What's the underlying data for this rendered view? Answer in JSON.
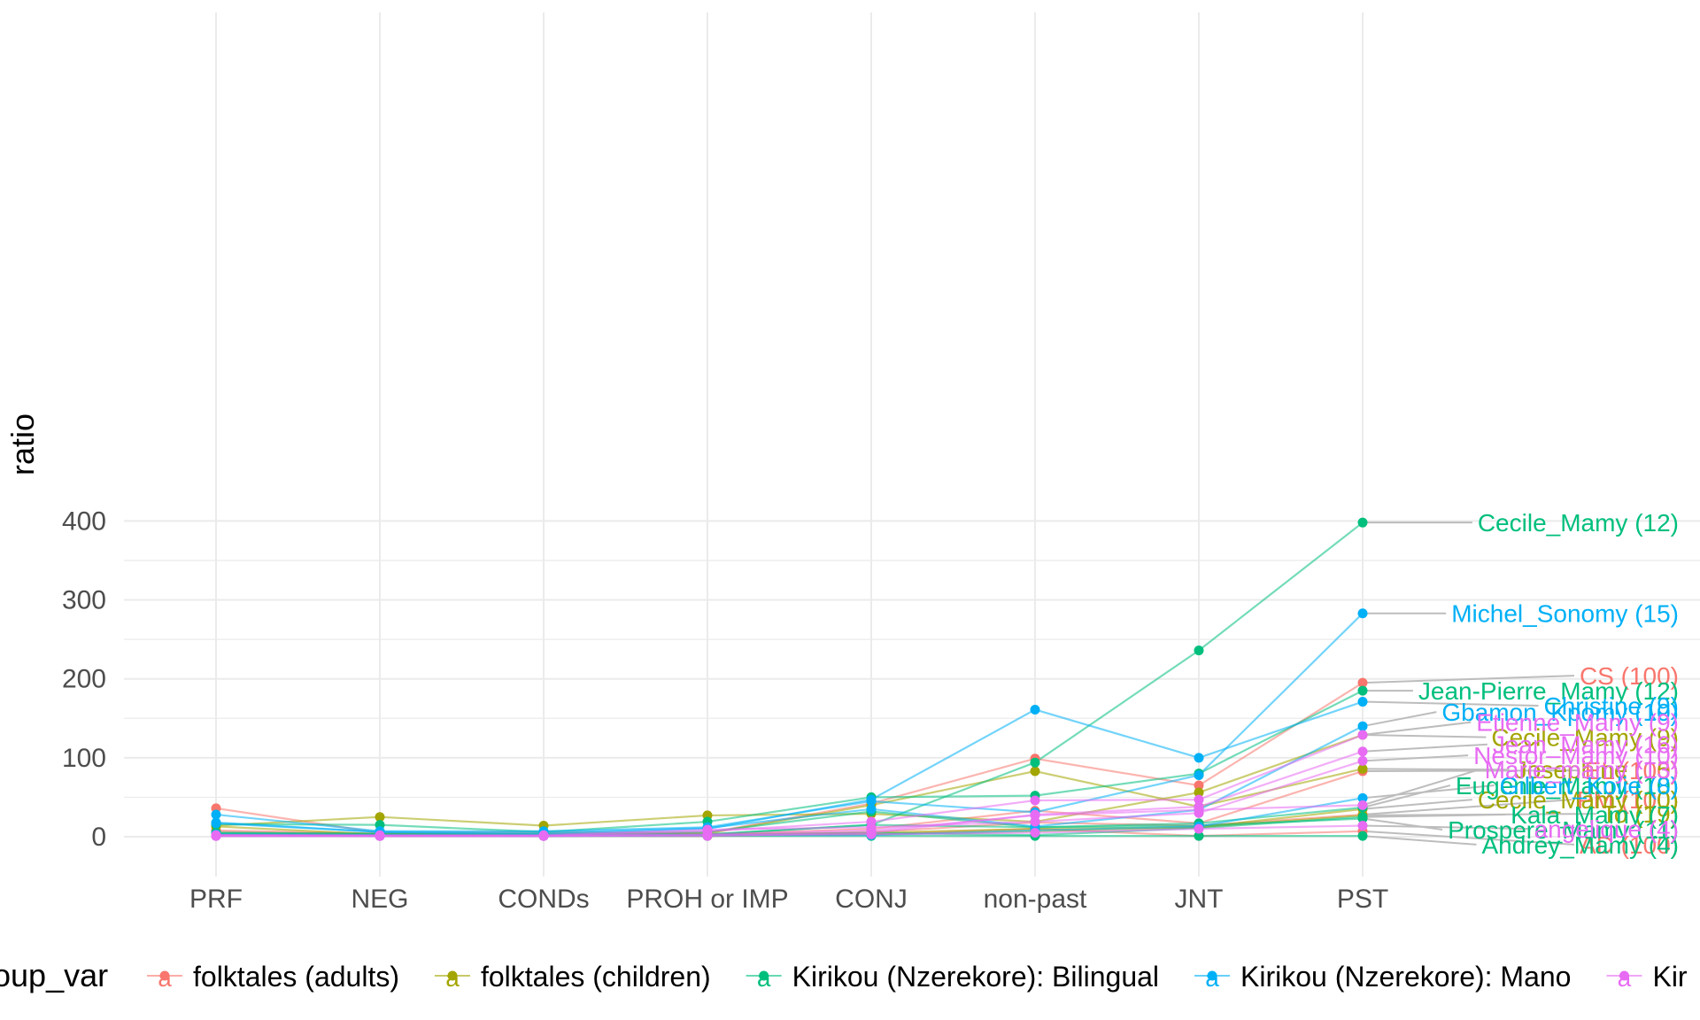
{
  "chart_data": {
    "type": "line",
    "xlabel": "",
    "ylabel": "ratio",
    "ylim": [
      -15,
      415
    ],
    "y_ticks": [
      0,
      100,
      200,
      300,
      400
    ],
    "grid": true,
    "categories": [
      "PRF",
      "NEG",
      "CONDs",
      "PROH or IMP",
      "CONJ",
      "non-past",
      "JNT",
      "PST"
    ],
    "groups": [
      {
        "key": "adults",
        "name": "folktales (adults)",
        "color": "#F8766D"
      },
      {
        "key": "children",
        "name": "folktales (children)",
        "color": "#A3A500"
      },
      {
        "key": "bilingual",
        "name": "Kirikou (Nzerekore): Bilingual",
        "color": "#00BF7D"
      },
      {
        "key": "mano",
        "name": "Kirikou (Nzerekore): Mano",
        "color": "#00B0F6"
      },
      {
        "key": "kir5",
        "name": "Kir",
        "color": "#E76BF3"
      }
    ],
    "legend": {
      "title": "oup_var",
      "position": "bottom"
    },
    "series": [
      {
        "label": "CS (100)",
        "group": "adults",
        "values": [
          36,
          5,
          6,
          5,
          42,
          99,
          65,
          195
        ],
        "label_y": 204
      },
      {
        "label": "EL (100)",
        "group": "adults",
        "values": [
          8,
          4,
          3,
          3,
          10,
          33,
          17,
          83
        ],
        "label_y": 84
      },
      {
        "label": "PM (100)",
        "group": "adults",
        "values": [
          6,
          3,
          2,
          2,
          6,
          18,
          14,
          28
        ],
        "label_y": 47
      },
      {
        "label": "AD (100)",
        "group": "adults",
        "values": [
          2,
          1,
          1,
          2,
          3,
          10,
          1,
          7
        ],
        "label_y": -10
      },
      {
        "label": "Cecile_Mamy (9)",
        "group": "children",
        "values": [
          14,
          25,
          14,
          27,
          29,
          19,
          56,
          129
        ],
        "label_y": 126
      },
      {
        "label": "Josephine (15)",
        "group": "children",
        "values": [
          13,
          3,
          4,
          4,
          40,
          83,
          38,
          86
        ],
        "label_y": 85
      },
      {
        "label": "Cecile_Mamy (10)",
        "group": "children",
        "values": [
          3,
          2,
          1,
          1,
          3,
          7,
          12,
          35
        ],
        "label_y": 47
      },
      {
        "label": "To (19)",
        "group": "children",
        "values": [
          2,
          2,
          2,
          3,
          5,
          10,
          12,
          27
        ],
        "label_y": 29
      },
      {
        "label": "Cecile_Mamy (12)",
        "group": "bilingual",
        "values": [
          5,
          3,
          2,
          3,
          15,
          94,
          236,
          398
        ],
        "label_y": 398
      },
      {
        "label": "Jean-Pierre_Mamy (12)",
        "group": "bilingual",
        "values": [
          16,
          15,
          6,
          19,
          50,
          52,
          80,
          185
        ],
        "label_y": 185
      },
      {
        "label": "Eugenie_Mamy (10)",
        "group": "bilingual",
        "values": [
          3,
          2,
          3,
          6,
          32,
          12,
          17,
          37
        ],
        "label_y": 65
      },
      {
        "label": "Kala_Mamy (7)",
        "group": "bilingual",
        "values": [
          2,
          1,
          1,
          2,
          5,
          2,
          11,
          25
        ],
        "label_y": 28
      },
      {
        "label": "Prospere_Mamy (11)",
        "group": "bilingual",
        "values": [
          5,
          4,
          2,
          3,
          15,
          12,
          14,
          23
        ],
        "label_y": 9
      },
      {
        "label": "Andrey_Mamy (4)",
        "group": "bilingual",
        "values": [
          1,
          1,
          1,
          1,
          1,
          1,
          1,
          1
        ],
        "label_y": -10
      },
      {
        "label": "Michel_Sonomy (15)",
        "group": "mano",
        "values": [
          28,
          7,
          7,
          12,
          45,
          31,
          78,
          283
        ],
        "label_y": 283
      },
      {
        "label": "Christine (9)",
        "group": "mano",
        "values": [
          17,
          6,
          3,
          10,
          47,
          161,
          100,
          171
        ],
        "label_y": 166
      },
      {
        "label": "Gbamon_Kpomy (10)",
        "group": "mano",
        "values": [
          18,
          6,
          5,
          11,
          35,
          13,
          34,
          140
        ],
        "label_y": 158
      },
      {
        "label": "Gilbert_Kolie (8)",
        "group": "mano",
        "values": [
          3,
          2,
          1,
          2,
          2,
          8,
          13,
          49
        ],
        "label_y": 65
      },
      {
        "label": "Etienne_Mamy (9)",
        "group": "kir5",
        "values": [
          2,
          1,
          1,
          7,
          19,
          46,
          47,
          129
        ],
        "label_y": 145
      },
      {
        "label": "Jean_Mamy (16)",
        "group": "kir5",
        "values": [
          1,
          1,
          1,
          1,
          5,
          28,
          38,
          108
        ],
        "label_y": 117
      },
      {
        "label": "Nestor_Mamy (10)",
        "group": "kir5",
        "values": [
          2,
          2,
          2,
          9,
          12,
          19,
          30,
          96
        ],
        "label_y": 103
      },
      {
        "label": "Marie_mamy (13)",
        "group": "kir5",
        "values": [
          1,
          1,
          1,
          3,
          8,
          27,
          34,
          40
        ],
        "label_y": 85
      },
      {
        "label": "angelique (4)",
        "group": "kir5",
        "values": [
          1,
          1,
          1,
          2,
          3,
          5,
          10,
          14
        ],
        "label_y": 10
      }
    ]
  }
}
